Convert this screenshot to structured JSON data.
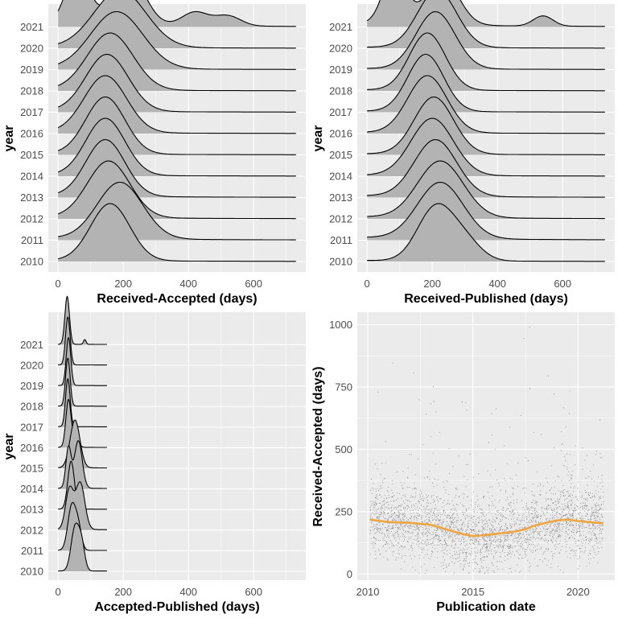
{
  "colors": {
    "panel_bg": "#EBEBEB",
    "grid": "#FFFFFF",
    "ridge_fill": "#B3B3B3",
    "ridge_line": "#000000",
    "smooth_line": "#F0A640",
    "point": "#333333"
  },
  "chart_data": [
    {
      "id": "ra",
      "type": "ridgeline",
      "xlabel": "Received-Accepted (days)",
      "ylabel": "year",
      "xlim": [
        -30,
        760
      ],
      "xticks": [
        0,
        200,
        400,
        600
      ],
      "x_end": 730,
      "years": [
        "2010",
        "2011",
        "2012",
        "2013",
        "2014",
        "2015",
        "2016",
        "2017",
        "2018",
        "2019",
        "2020",
        "2021"
      ],
      "densities": [
        {
          "year": "2010",
          "comps": [
            [
              160,
              60,
              1
            ]
          ],
          "tail": 0.02
        },
        {
          "year": "2011",
          "comps": [
            [
              190,
              70,
              0.8
            ]
          ],
          "tail": 0.03
        },
        {
          "year": "2012",
          "comps": [
            [
              155,
              65,
              1
            ]
          ],
          "tail": 0.03
        },
        {
          "year": "2013",
          "comps": [
            [
              145,
              60,
              1
            ]
          ],
          "tail": 0.03
        },
        {
          "year": "2014",
          "comps": [
            [
              145,
              60,
              1
            ]
          ],
          "tail": 0.02
        },
        {
          "year": "2015",
          "comps": [
            [
              145,
              60,
              1
            ]
          ],
          "tail": 0.02
        },
        {
          "year": "2016",
          "comps": [
            [
              145,
              65,
              1
            ]
          ],
          "tail": 0.02
        },
        {
          "year": "2017",
          "comps": [
            [
              150,
              65,
              1
            ]
          ],
          "tail": 0.02
        },
        {
          "year": "2018",
          "comps": [
            [
              160,
              70,
              1
            ]
          ],
          "tail": 0.02
        },
        {
          "year": "2019",
          "comps": [
            [
              180,
              80,
              1
            ]
          ],
          "tail": 0.02
        },
        {
          "year": "2020",
          "comps": [
            [
              190,
              80,
              1
            ]
          ],
          "tail": 0.02
        },
        {
          "year": "2021",
          "comps": [
            [
              60,
              35,
              0.8
            ],
            [
              215,
              50,
              0.75
            ],
            [
              420,
              40,
              0.2
            ],
            [
              520,
              40,
              0.15
            ]
          ],
          "tail": 0.05
        }
      ]
    },
    {
      "id": "rp",
      "type": "ridgeline",
      "xlabel": "Received-Published (days)",
      "ylabel": "year",
      "xlim": [
        -30,
        760
      ],
      "xticks": [
        0,
        200,
        400,
        600
      ],
      "x_end": 730,
      "years": [
        "2010",
        "2011",
        "2012",
        "2013",
        "2014",
        "2015",
        "2016",
        "2017",
        "2018",
        "2019",
        "2020",
        "2021"
      ],
      "densities": [
        {
          "year": "2010",
          "comps": [
            [
              210,
              55,
              1
            ],
            [
              300,
              50,
              0.35
            ]
          ],
          "tail": 0.02
        },
        {
          "year": "2011",
          "comps": [
            [
              225,
              70,
              0.8
            ]
          ],
          "tail": 0.04
        },
        {
          "year": "2012",
          "comps": [
            [
              225,
              70,
              0.8
            ]
          ],
          "tail": 0.03
        },
        {
          "year": "2013",
          "comps": [
            [
              210,
              65,
              0.9
            ]
          ],
          "tail": 0.03
        },
        {
          "year": "2014",
          "comps": [
            [
              200,
              65,
              1
            ]
          ],
          "tail": 0.02
        },
        {
          "year": "2015",
          "comps": [
            [
              205,
              60,
              1
            ]
          ],
          "tail": 0.02
        },
        {
          "year": "2016",
          "comps": [
            [
              185,
              60,
              1
            ]
          ],
          "tail": 0.02
        },
        {
          "year": "2017",
          "comps": [
            [
              180,
              55,
              1
            ]
          ],
          "tail": 0.02
        },
        {
          "year": "2018",
          "comps": [
            [
              185,
              55,
              1
            ]
          ],
          "tail": 0.02
        },
        {
          "year": "2019",
          "comps": [
            [
              210,
              60,
              1
            ]
          ],
          "tail": 0.02
        },
        {
          "year": "2020",
          "comps": [
            [
              215,
              60,
              1
            ]
          ],
          "tail": 0.02
        },
        {
          "year": "2021",
          "comps": [
            [
              85,
              35,
              0.8
            ],
            [
              230,
              50,
              0.7
            ],
            [
              540,
              30,
              0.15
            ]
          ],
          "tail": 0.05
        }
      ]
    },
    {
      "id": "ap",
      "type": "ridgeline",
      "xlabel": "Accepted-Published (days)",
      "ylabel": "year",
      "xlim": [
        -30,
        760
      ],
      "xticks": [
        0,
        200,
        400,
        600
      ],
      "x_end": 150,
      "years": [
        "2010",
        "2011",
        "2012",
        "2013",
        "2014",
        "2015",
        "2016",
        "2017",
        "2018",
        "2019",
        "2020",
        "2021"
      ],
      "densities": [
        {
          "year": "2010",
          "comps": [
            [
              52,
              12,
              1
            ],
            [
              72,
              10,
              0.6
            ]
          ],
          "tail": 0.01
        },
        {
          "year": "2011",
          "comps": [
            [
              42,
              12,
              1
            ],
            [
              62,
              10,
              0.5
            ]
          ],
          "tail": 0.01
        },
        {
          "year": "2012",
          "comps": [
            [
              35,
              12,
              0.6
            ],
            [
              68,
              14,
              0.7
            ]
          ],
          "tail": 0.01
        },
        {
          "year": "2013",
          "comps": [
            [
              40,
              10,
              1
            ]
          ],
          "tail": 0.01
        },
        {
          "year": "2014",
          "comps": [
            [
              32,
              8,
              0.55
            ],
            [
              62,
              12,
              0.65
            ]
          ],
          "tail": 0.01
        },
        {
          "year": "2015",
          "comps": [
            [
              52,
              15,
              0.8
            ]
          ],
          "tail": 0.01
        },
        {
          "year": "2016",
          "comps": [
            [
              32,
              8,
              1
            ],
            [
              55,
              8,
              0.25
            ]
          ],
          "tail": 0.01
        },
        {
          "year": "2017",
          "comps": [
            [
              30,
              7,
              1
            ]
          ],
          "tail": 0.01
        },
        {
          "year": "2018",
          "comps": [
            [
              30,
              7,
              1
            ]
          ],
          "tail": 0.01
        },
        {
          "year": "2019",
          "comps": [
            [
              32,
              7,
              1
            ]
          ],
          "tail": 0.01
        },
        {
          "year": "2020",
          "comps": [
            [
              30,
              7,
              1
            ]
          ],
          "tail": 0.01
        },
        {
          "year": "2021",
          "comps": [
            [
              28,
              7,
              1
            ],
            [
              82,
              4,
              0.1
            ]
          ],
          "tail": 0.01
        }
      ]
    },
    {
      "id": "scatter",
      "type": "scatter",
      "xlabel": "Publication date",
      "ylabel": "Received-Accepted (days)",
      "xlim": [
        2009.5,
        2021.75
      ],
      "ylim": [
        -25,
        1050
      ],
      "xticks": [
        2010,
        2015,
        2020
      ],
      "yticks": [
        0,
        250,
        500,
        750,
        1000
      ],
      "n_points": 3200,
      "smooth": {
        "x": [
          2010.1,
          2011,
          2012,
          2013,
          2014,
          2014.5,
          2015,
          2015.5,
          2016,
          2017,
          2017.5,
          2018,
          2019,
          2019.5,
          2020,
          2021.2
        ],
        "y": [
          218,
          208,
          205,
          197,
          172,
          160,
          152,
          155,
          160,
          170,
          180,
          196,
          215,
          218,
          212,
          203
        ]
      }
    }
  ]
}
